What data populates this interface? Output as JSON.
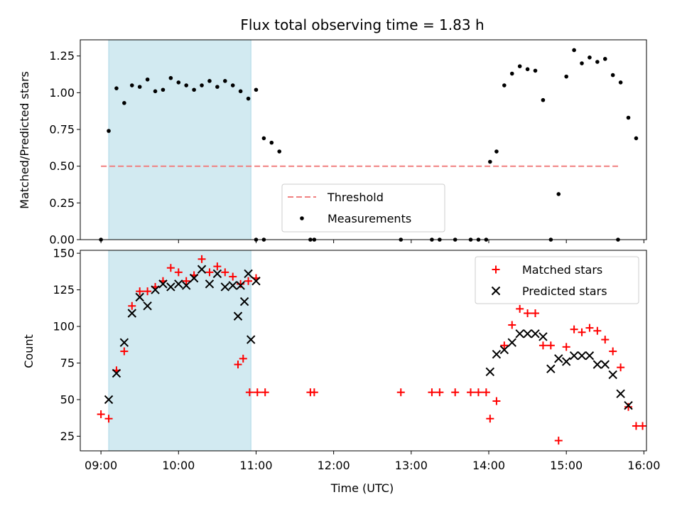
{
  "chart_data": [
    {
      "type": "scatter",
      "title": "Flux total observing time = 1.83 h",
      "xlabel": "",
      "ylabel": "Matched/Predicted stars",
      "xlim": [
        "08:44",
        "16:02"
      ],
      "ylim": [
        0,
        1.36
      ],
      "yticks": [
        "0.00",
        "0.25",
        "0.50",
        "0.75",
        "1.00",
        "1.25"
      ],
      "highlight_span": [
        "09:06",
        "10:56"
      ],
      "highlight_color": "#add8e6",
      "threshold": {
        "name": "Threshold",
        "y": 0.5,
        "x": [
          "09:00",
          "15:40"
        ],
        "color": "#f08080"
      },
      "legend": {
        "position": "lower-center",
        "entries": [
          "Threshold",
          "Measurements"
        ]
      },
      "series": [
        {
          "name": "Measurements",
          "color": "#000000",
          "points": [
            [
              "09:00",
              0.0
            ],
            [
              "09:06",
              0.74
            ],
            [
              "09:12",
              1.03
            ],
            [
              "09:18",
              0.93
            ],
            [
              "09:24",
              1.05
            ],
            [
              "09:30",
              1.04
            ],
            [
              "09:36",
              1.09
            ],
            [
              "09:42",
              1.01
            ],
            [
              "09:48",
              1.02
            ],
            [
              "09:54",
              1.1
            ],
            [
              "10:00",
              1.07
            ],
            [
              "10:06",
              1.05
            ],
            [
              "10:12",
              1.02
            ],
            [
              "10:18",
              1.05
            ],
            [
              "10:24",
              1.08
            ],
            [
              "10:30",
              1.04
            ],
            [
              "10:36",
              1.08
            ],
            [
              "10:42",
              1.05
            ],
            [
              "10:48",
              1.01
            ],
            [
              "10:54",
              0.96
            ],
            [
              "11:00",
              1.02
            ],
            [
              "11:06",
              0.69
            ],
            [
              "11:12",
              0.66
            ],
            [
              "11:18",
              0.6
            ],
            [
              "11:00",
              0.0
            ],
            [
              "11:06",
              0.0
            ],
            [
              "11:42",
              0.0
            ],
            [
              "11:45",
              0.0
            ],
            [
              "12:52",
              0.0
            ],
            [
              "13:16",
              0.0
            ],
            [
              "13:22",
              0.0
            ],
            [
              "13:34",
              0.0
            ],
            [
              "13:46",
              0.0
            ],
            [
              "13:52",
              0.0
            ],
            [
              "13:58",
              0.0
            ],
            [
              "14:01",
              0.53
            ],
            [
              "14:06",
              0.6
            ],
            [
              "14:12",
              1.05
            ],
            [
              "14:18",
              1.13
            ],
            [
              "14:24",
              1.18
            ],
            [
              "14:30",
              1.16
            ],
            [
              "14:36",
              1.15
            ],
            [
              "14:42",
              0.95
            ],
            [
              "14:48",
              0.0
            ],
            [
              "14:54",
              0.31
            ],
            [
              "15:00",
              1.11
            ],
            [
              "15:06",
              1.29
            ],
            [
              "15:12",
              1.2
            ],
            [
              "15:18",
              1.24
            ],
            [
              "15:24",
              1.21
            ],
            [
              "15:30",
              1.23
            ],
            [
              "15:36",
              1.12
            ],
            [
              "15:42",
              1.07
            ],
            [
              "15:48",
              0.83
            ],
            [
              "15:54",
              0.69
            ],
            [
              "15:40",
              0.0
            ]
          ]
        }
      ]
    },
    {
      "type": "scatter",
      "title": "",
      "xlabel": "Time (UTC)",
      "ylabel": "Count",
      "xlim": [
        "08:44",
        "16:02"
      ],
      "ylim": [
        15,
        152
      ],
      "xticks": [
        "09:00",
        "10:00",
        "11:00",
        "12:00",
        "13:00",
        "14:00",
        "15:00",
        "16:00"
      ],
      "yticks": [
        "25",
        "50",
        "75",
        "100",
        "125",
        "150"
      ],
      "highlight_span": [
        "09:06",
        "10:56"
      ],
      "highlight_color": "#add8e6",
      "legend": {
        "position": "upper-right",
        "entries": [
          "Matched stars",
          "Predicted stars"
        ]
      },
      "series": [
        {
          "name": "Matched stars",
          "color": "#ff0000",
          "marker": "plus",
          "points": [
            [
              "09:00",
              40
            ],
            [
              "09:06",
              37
            ],
            [
              "09:12",
              70
            ],
            [
              "09:18",
              83
            ],
            [
              "09:24",
              114
            ],
            [
              "09:30",
              124
            ],
            [
              "09:36",
              124
            ],
            [
              "09:42",
              127
            ],
            [
              "09:48",
              131
            ],
            [
              "09:54",
              140
            ],
            [
              "10:00",
              137
            ],
            [
              "10:06",
              131
            ],
            [
              "10:12",
              135
            ],
            [
              "10:18",
              146
            ],
            [
              "10:24",
              137
            ],
            [
              "10:30",
              141
            ],
            [
              "10:36",
              137
            ],
            [
              "10:42",
              134
            ],
            [
              "10:48",
              129
            ],
            [
              "10:54",
              131
            ],
            [
              "11:00",
              133
            ],
            [
              "10:46",
              74
            ],
            [
              "10:50",
              78
            ],
            [
              "10:55",
              55
            ],
            [
              "11:01",
              55
            ],
            [
              "11:07",
              55
            ],
            [
              "11:42",
              55
            ],
            [
              "11:45",
              55
            ],
            [
              "12:52",
              55
            ],
            [
              "13:16",
              55
            ],
            [
              "13:22",
              55
            ],
            [
              "13:34",
              55
            ],
            [
              "13:46",
              55
            ],
            [
              "13:52",
              55
            ],
            [
              "13:58",
              55
            ],
            [
              "14:01",
              37
            ],
            [
              "14:06",
              49
            ],
            [
              "14:12",
              87
            ],
            [
              "14:18",
              101
            ],
            [
              "14:24",
              112
            ],
            [
              "14:30",
              109
            ],
            [
              "14:36",
              109
            ],
            [
              "14:42",
              87
            ],
            [
              "14:48",
              87
            ],
            [
              "14:54",
              22
            ],
            [
              "15:00",
              86
            ],
            [
              "15:06",
              98
            ],
            [
              "15:12",
              96
            ],
            [
              "15:18",
              99
            ],
            [
              "15:24",
              97
            ],
            [
              "15:30",
              91
            ],
            [
              "15:36",
              83
            ],
            [
              "15:42",
              72
            ],
            [
              "15:48",
              45
            ],
            [
              "15:54",
              32
            ],
            [
              "15:59",
              32
            ]
          ]
        },
        {
          "name": "Predicted stars",
          "color": "#000000",
          "marker": "x",
          "points": [
            [
              "09:06",
              50
            ],
            [
              "09:12",
              68
            ],
            [
              "09:18",
              89
            ],
            [
              "09:24",
              109
            ],
            [
              "09:30",
              120
            ],
            [
              "09:36",
              114
            ],
            [
              "09:42",
              125
            ],
            [
              "09:48",
              129
            ],
            [
              "09:54",
              127
            ],
            [
              "10:00",
              129
            ],
            [
              "10:06",
              128
            ],
            [
              "10:12",
              133
            ],
            [
              "10:18",
              139
            ],
            [
              "10:24",
              129
            ],
            [
              "10:30",
              136
            ],
            [
              "10:36",
              127
            ],
            [
              "10:42",
              128
            ],
            [
              "10:48",
              128
            ],
            [
              "10:54",
              136
            ],
            [
              "11:00",
              131
            ],
            [
              "10:46",
              107
            ],
            [
              "10:51",
              117
            ],
            [
              "10:56",
              91
            ],
            [
              "14:01",
              69
            ],
            [
              "14:06",
              81
            ],
            [
              "14:12",
              84
            ],
            [
              "14:18",
              89
            ],
            [
              "14:24",
              95
            ],
            [
              "14:30",
              95
            ],
            [
              "14:36",
              95
            ],
            [
              "14:42",
              93
            ],
            [
              "14:48",
              71
            ],
            [
              "14:54",
              78
            ],
            [
              "15:00",
              76
            ],
            [
              "15:06",
              80
            ],
            [
              "15:12",
              80
            ],
            [
              "15:18",
              80
            ],
            [
              "15:24",
              74
            ],
            [
              "15:30",
              74
            ],
            [
              "15:36",
              67
            ],
            [
              "15:42",
              54
            ],
            [
              "15:48",
              46
            ]
          ]
        }
      ]
    }
  ]
}
